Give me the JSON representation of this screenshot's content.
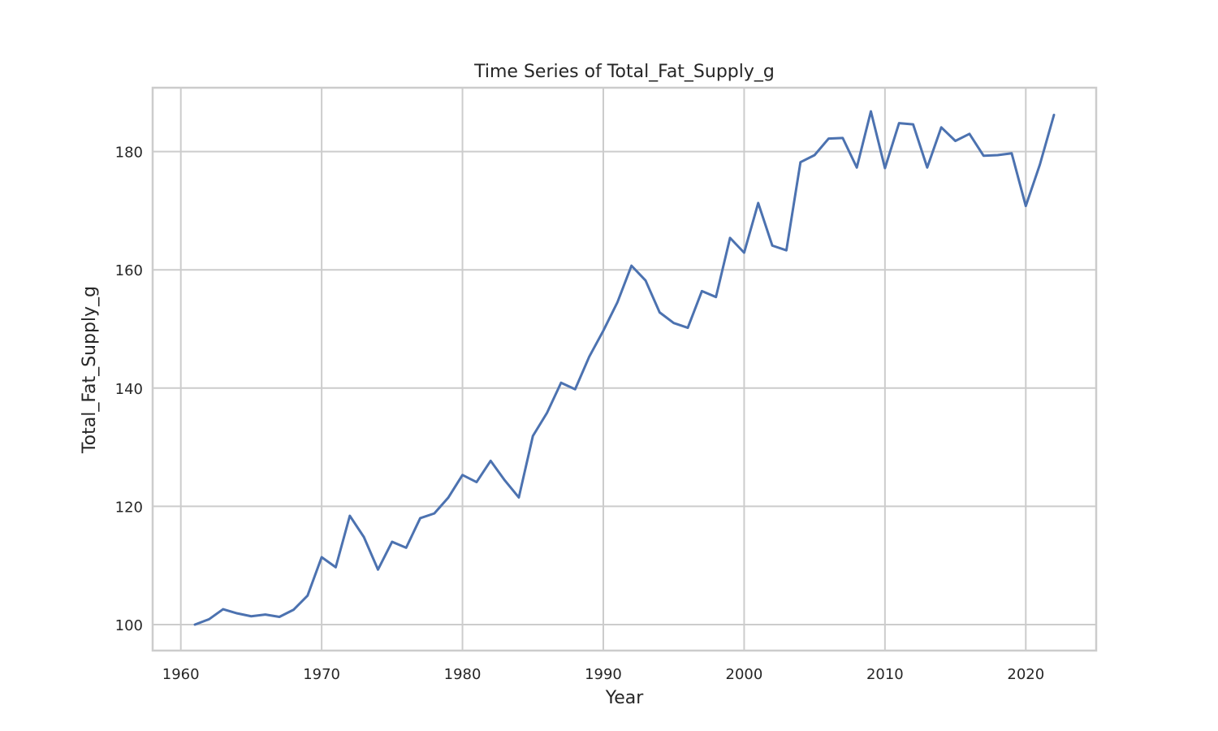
{
  "chart_data": {
    "type": "line",
    "title": "Time Series of Total_Fat_Supply_g",
    "xlabel": "Year",
    "ylabel": "Total_Fat_Supply_g",
    "xlim": [
      1958,
      2025
    ],
    "ylim": [
      95.6,
      190.8
    ],
    "xticks": [
      1960,
      1970,
      1980,
      1990,
      2000,
      2010,
      2020
    ],
    "yticks": [
      100,
      120,
      140,
      160,
      180
    ],
    "grid": true,
    "color": "#4c72b0",
    "series": [
      {
        "x": [
          1961,
          1962,
          1963,
          1964,
          1965,
          1966,
          1967,
          1968,
          1969,
          1970,
          1971,
          1972,
          1973,
          1974,
          1975,
          1976,
          1977,
          1978,
          1979,
          1980,
          1981,
          1982,
          1983,
          1984,
          1985,
          1986,
          1987,
          1988,
          1989,
          1990,
          1991,
          1992,
          1993,
          1994,
          1995,
          1996,
          1997,
          1998,
          1999,
          2000,
          2001,
          2002,
          2003,
          2004,
          2005,
          2006,
          2007,
          2008,
          2009,
          2010,
          2011,
          2012,
          2013,
          2014,
          2015,
          2016,
          2017,
          2018,
          2019,
          2020,
          2021,
          2022
        ],
        "values": [
          100.0,
          100.9,
          102.6,
          101.9,
          101.4,
          101.7,
          101.3,
          102.5,
          104.9,
          111.4,
          109.7,
          118.4,
          114.8,
          109.3,
          114.0,
          113.0,
          118.0,
          118.8,
          121.5,
          125.3,
          124.1,
          127.7,
          124.4,
          121.5,
          131.9,
          135.8,
          140.9,
          139.8,
          145.3,
          149.7,
          154.5,
          160.7,
          158.2,
          152.8,
          151.0,
          150.2,
          156.4,
          155.4,
          165.4,
          162.9,
          171.3,
          164.1,
          163.3,
          178.2,
          179.4,
          182.2,
          182.3,
          177.3,
          186.8,
          177.2,
          184.8,
          184.6,
          177.3,
          184.1,
          181.8,
          183.0,
          179.3,
          179.4,
          179.7,
          170.8,
          177.8,
          186.2
        ]
      }
    ]
  }
}
